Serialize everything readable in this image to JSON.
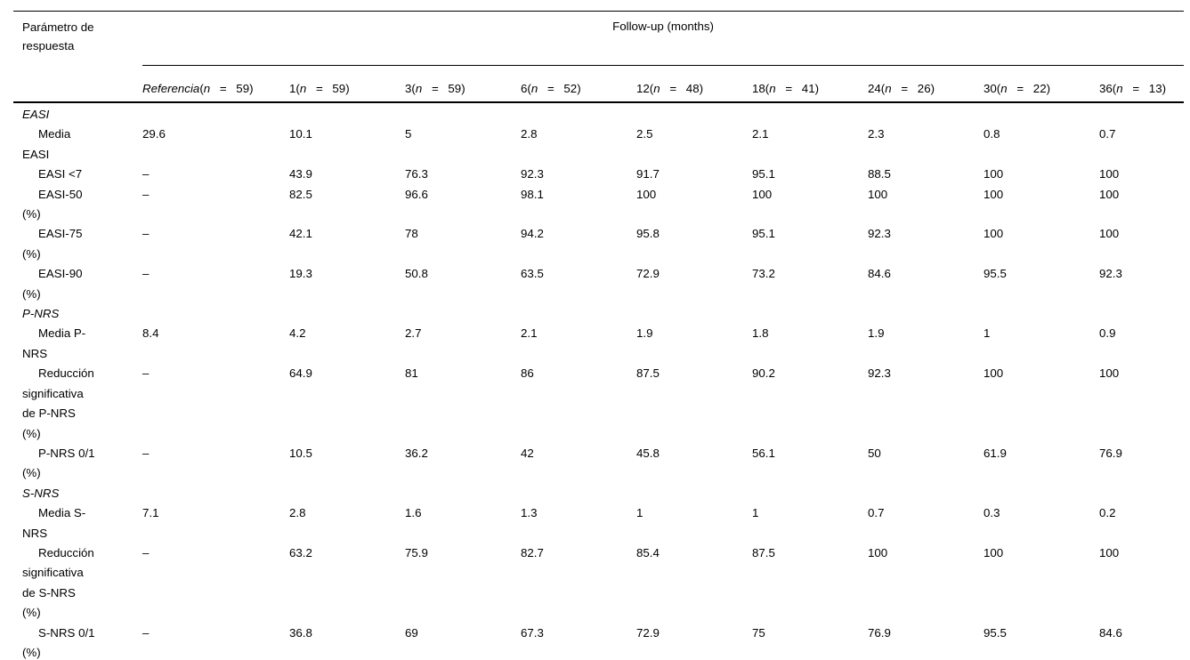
{
  "table": {
    "corner_header": "Parámetro de respuesta",
    "group_header": "Follow-up (months)",
    "columns": [
      {
        "label": "Referencia",
        "italic_label": true,
        "n": "59"
      },
      {
        "label": "1",
        "italic_label": false,
        "n": "59"
      },
      {
        "label": "3",
        "italic_label": false,
        "n": "59"
      },
      {
        "label": "6",
        "italic_label": false,
        "n": "52"
      },
      {
        "label": "12",
        "italic_label": false,
        "n": "48"
      },
      {
        "label": "18",
        "italic_label": false,
        "n": "41"
      },
      {
        "label": "24",
        "italic_label": false,
        "n": "26"
      },
      {
        "label": "30",
        "italic_label": false,
        "n": "22"
      },
      {
        "label": "36",
        "italic_label": false,
        "n": "13"
      }
    ],
    "sections": [
      {
        "title": "EASI",
        "rows": [
          {
            "label": "Media EASI",
            "values": [
              "29.6",
              "10.1",
              "5",
              "2.8",
              "2.5",
              "2.1",
              "2.3",
              "0.8",
              "0.7"
            ]
          },
          {
            "label": "EASI <7",
            "values": [
              "–",
              "43.9",
              "76.3",
              "92.3",
              "91.7",
              "95.1",
              "88.5",
              "100",
              "100"
            ]
          },
          {
            "label": "EASI-50 (%)",
            "values": [
              "–",
              "82.5",
              "96.6",
              "98.1",
              "100",
              "100",
              "100",
              "100",
              "100"
            ]
          },
          {
            "label": "EASI-75 (%)",
            "values": [
              "–",
              "42.1",
              "78",
              "94.2",
              "95.8",
              "95.1",
              "92.3",
              "100",
              "100"
            ]
          },
          {
            "label": "EASI-90 (%)",
            "values": [
              "–",
              "19.3",
              "50.8",
              "63.5",
              "72.9",
              "73.2",
              "84.6",
              "95.5",
              "92.3"
            ]
          }
        ]
      },
      {
        "title": "P-NRS",
        "rows": [
          {
            "label": "Media P-NRS",
            "values": [
              "8.4",
              "4.2",
              "2.7",
              "2.1",
              "1.9",
              "1.8",
              "1.9",
              "1",
              "0.9"
            ]
          },
          {
            "label": "Reducción significativa de P-NRS (%)",
            "values": [
              "–",
              "64.9",
              "81",
              "86",
              "87.5",
              "90.2",
              "92.3",
              "100",
              "100"
            ]
          },
          {
            "label": "P-NRS 0/1 (%)",
            "values": [
              "–",
              "10.5",
              "36.2",
              "42",
              "45.8",
              "56.1",
              "50",
              "61.9",
              "76.9"
            ]
          }
        ]
      },
      {
        "title": "S-NRS",
        "rows": [
          {
            "label": "Media S-NRS",
            "values": [
              "7.1",
              "2.8",
              "1.6",
              "1.3",
              "1",
              "1",
              "0.7",
              "0.3",
              "0.2"
            ]
          },
          {
            "label": "Reducción significativa de S-NRS (%)",
            "values": [
              "–",
              "63.2",
              "75.9",
              "82.7",
              "85.4",
              "87.5",
              "100",
              "100",
              "100"
            ]
          },
          {
            "label": "S-NRS 0/1 (%)",
            "values": [
              "–",
              "36.8",
              "69",
              "67.3",
              "72.9",
              "75",
              "76.9",
              "95.5",
              "84.6"
            ]
          }
        ]
      }
    ]
  }
}
